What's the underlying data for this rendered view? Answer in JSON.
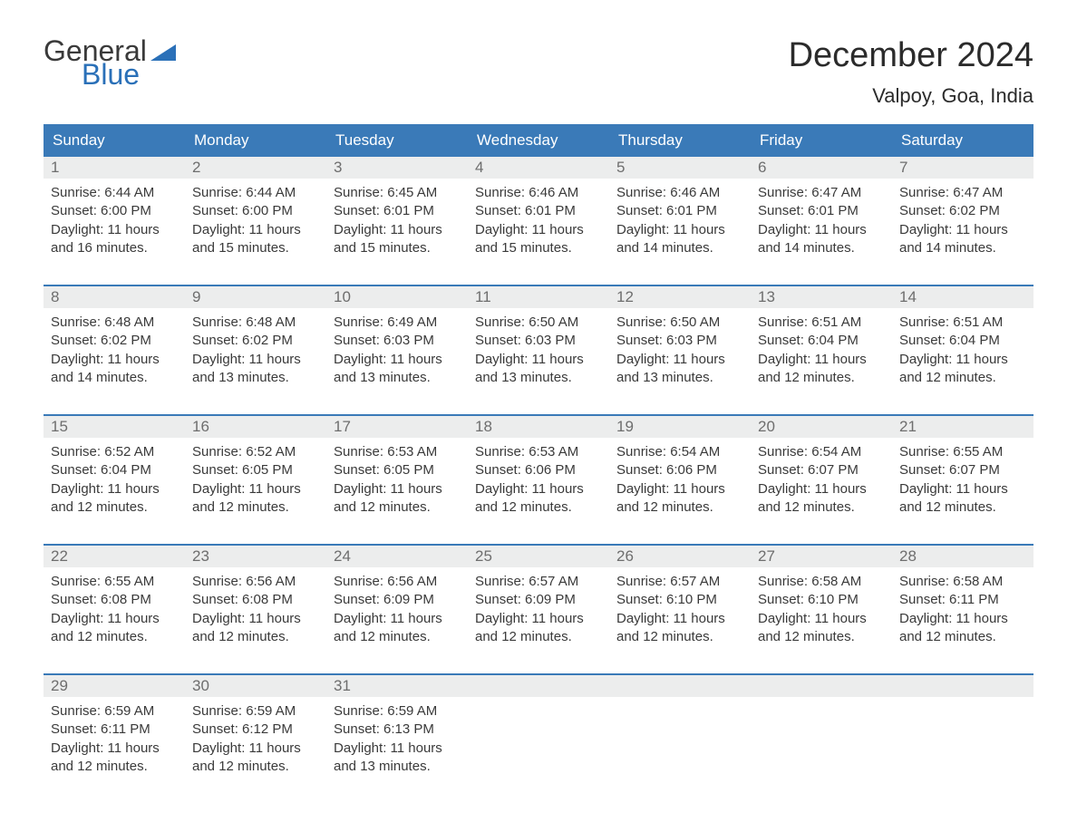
{
  "logo": {
    "text1": "General",
    "text2": "Blue",
    "text_color": "#3a3a3a",
    "accent_color": "#2a70b8"
  },
  "header": {
    "month": "December 2024",
    "location": "Valpoy, Goa, India"
  },
  "colors": {
    "header_bg": "#3a7ab8",
    "header_text": "#ffffff",
    "num_bg": "#eceded",
    "num_text": "#6e6e6e",
    "body_text": "#3a3a3a",
    "week_border": "#3a7ab8",
    "page_bg": "#ffffff"
  },
  "dow": [
    "Sunday",
    "Monday",
    "Tuesday",
    "Wednesday",
    "Thursday",
    "Friday",
    "Saturday"
  ],
  "weeks": [
    [
      {
        "n": "1",
        "sunrise": "6:44 AM",
        "sunset": "6:00 PM",
        "dl1": "11 hours",
        "dl2": "and 16 minutes."
      },
      {
        "n": "2",
        "sunrise": "6:44 AM",
        "sunset": "6:00 PM",
        "dl1": "11 hours",
        "dl2": "and 15 minutes."
      },
      {
        "n": "3",
        "sunrise": "6:45 AM",
        "sunset": "6:01 PM",
        "dl1": "11 hours",
        "dl2": "and 15 minutes."
      },
      {
        "n": "4",
        "sunrise": "6:46 AM",
        "sunset": "6:01 PM",
        "dl1": "11 hours",
        "dl2": "and 15 minutes."
      },
      {
        "n": "5",
        "sunrise": "6:46 AM",
        "sunset": "6:01 PM",
        "dl1": "11 hours",
        "dl2": "and 14 minutes."
      },
      {
        "n": "6",
        "sunrise": "6:47 AM",
        "sunset": "6:01 PM",
        "dl1": "11 hours",
        "dl2": "and 14 minutes."
      },
      {
        "n": "7",
        "sunrise": "6:47 AM",
        "sunset": "6:02 PM",
        "dl1": "11 hours",
        "dl2": "and 14 minutes."
      }
    ],
    [
      {
        "n": "8",
        "sunrise": "6:48 AM",
        "sunset": "6:02 PM",
        "dl1": "11 hours",
        "dl2": "and 14 minutes."
      },
      {
        "n": "9",
        "sunrise": "6:48 AM",
        "sunset": "6:02 PM",
        "dl1": "11 hours",
        "dl2": "and 13 minutes."
      },
      {
        "n": "10",
        "sunrise": "6:49 AM",
        "sunset": "6:03 PM",
        "dl1": "11 hours",
        "dl2": "and 13 minutes."
      },
      {
        "n": "11",
        "sunrise": "6:50 AM",
        "sunset": "6:03 PM",
        "dl1": "11 hours",
        "dl2": "and 13 minutes."
      },
      {
        "n": "12",
        "sunrise": "6:50 AM",
        "sunset": "6:03 PM",
        "dl1": "11 hours",
        "dl2": "and 13 minutes."
      },
      {
        "n": "13",
        "sunrise": "6:51 AM",
        "sunset": "6:04 PM",
        "dl1": "11 hours",
        "dl2": "and 12 minutes."
      },
      {
        "n": "14",
        "sunrise": "6:51 AM",
        "sunset": "6:04 PM",
        "dl1": "11 hours",
        "dl2": "and 12 minutes."
      }
    ],
    [
      {
        "n": "15",
        "sunrise": "6:52 AM",
        "sunset": "6:04 PM",
        "dl1": "11 hours",
        "dl2": "and 12 minutes."
      },
      {
        "n": "16",
        "sunrise": "6:52 AM",
        "sunset": "6:05 PM",
        "dl1": "11 hours",
        "dl2": "and 12 minutes."
      },
      {
        "n": "17",
        "sunrise": "6:53 AM",
        "sunset": "6:05 PM",
        "dl1": "11 hours",
        "dl2": "and 12 minutes."
      },
      {
        "n": "18",
        "sunrise": "6:53 AM",
        "sunset": "6:06 PM",
        "dl1": "11 hours",
        "dl2": "and 12 minutes."
      },
      {
        "n": "19",
        "sunrise": "6:54 AM",
        "sunset": "6:06 PM",
        "dl1": "11 hours",
        "dl2": "and 12 minutes."
      },
      {
        "n": "20",
        "sunrise": "6:54 AM",
        "sunset": "6:07 PM",
        "dl1": "11 hours",
        "dl2": "and 12 minutes."
      },
      {
        "n": "21",
        "sunrise": "6:55 AM",
        "sunset": "6:07 PM",
        "dl1": "11 hours",
        "dl2": "and 12 minutes."
      }
    ],
    [
      {
        "n": "22",
        "sunrise": "6:55 AM",
        "sunset": "6:08 PM",
        "dl1": "11 hours",
        "dl2": "and 12 minutes."
      },
      {
        "n": "23",
        "sunrise": "6:56 AM",
        "sunset": "6:08 PM",
        "dl1": "11 hours",
        "dl2": "and 12 minutes."
      },
      {
        "n": "24",
        "sunrise": "6:56 AM",
        "sunset": "6:09 PM",
        "dl1": "11 hours",
        "dl2": "and 12 minutes."
      },
      {
        "n": "25",
        "sunrise": "6:57 AM",
        "sunset": "6:09 PM",
        "dl1": "11 hours",
        "dl2": "and 12 minutes."
      },
      {
        "n": "26",
        "sunrise": "6:57 AM",
        "sunset": "6:10 PM",
        "dl1": "11 hours",
        "dl2": "and 12 minutes."
      },
      {
        "n": "27",
        "sunrise": "6:58 AM",
        "sunset": "6:10 PM",
        "dl1": "11 hours",
        "dl2": "and 12 minutes."
      },
      {
        "n": "28",
        "sunrise": "6:58 AM",
        "sunset": "6:11 PM",
        "dl1": "11 hours",
        "dl2": "and 12 minutes."
      }
    ],
    [
      {
        "n": "29",
        "sunrise": "6:59 AM",
        "sunset": "6:11 PM",
        "dl1": "11 hours",
        "dl2": "and 12 minutes."
      },
      {
        "n": "30",
        "sunrise": "6:59 AM",
        "sunset": "6:12 PM",
        "dl1": "11 hours",
        "dl2": "and 12 minutes."
      },
      {
        "n": "31",
        "sunrise": "6:59 AM",
        "sunset": "6:13 PM",
        "dl1": "11 hours",
        "dl2": "and 13 minutes."
      },
      null,
      null,
      null,
      null
    ]
  ],
  "labels": {
    "sunrise": "Sunrise:",
    "sunset": "Sunset:",
    "daylight": "Daylight:"
  }
}
